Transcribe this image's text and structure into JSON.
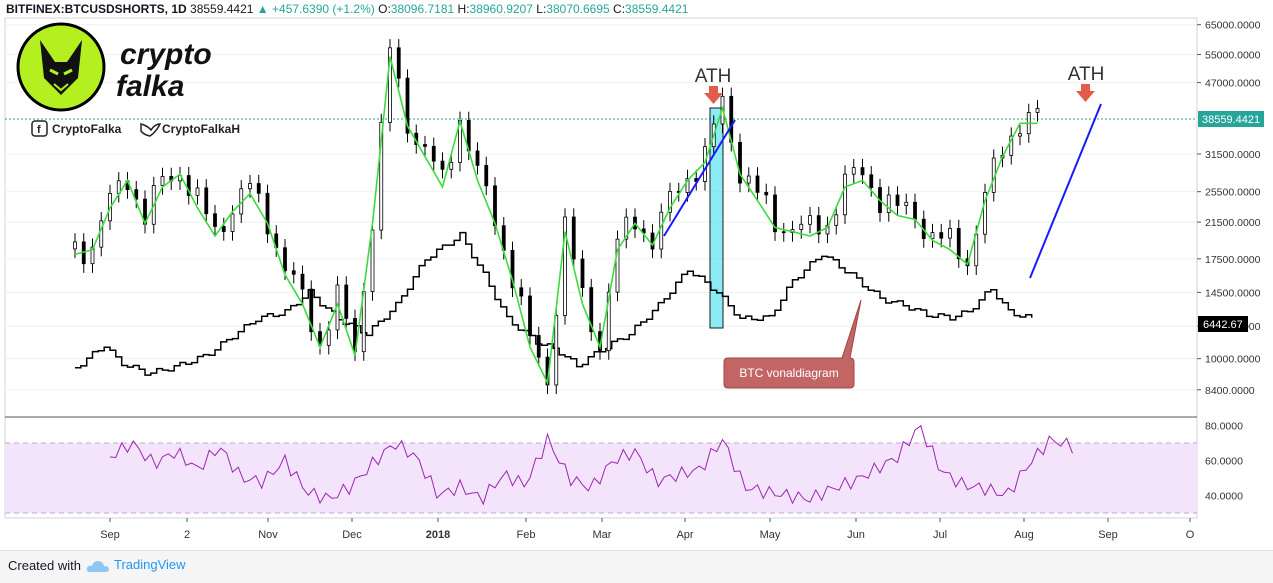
{
  "header": {
    "symbol": "BITFINEX:BTCUSDSHORTS, 1D",
    "last": "38559.4421",
    "change": "+457.6390 (+1.2%)",
    "o_label": "O:",
    "o": "38096.7181",
    "h_label": "H:",
    "h": "38960.9207",
    "l_label": "L:",
    "l": "38070.6695",
    "c_label": "C:",
    "c": "38559.4421"
  },
  "logo": {
    "line1": "crypto",
    "line2": "falka"
  },
  "social": {
    "facebook": "CryptoFalka",
    "twitter": "CryptoFalkaH"
  },
  "annotations": {
    "ath1": "ATH",
    "ath2": "ATH",
    "btc_callout": "BTC vonaldiagram"
  },
  "price_tags": {
    "shorts_last": "38559.4421",
    "btc_last": "6442.67"
  },
  "footer": {
    "created_with": "Created with",
    "brand": "TradingView"
  },
  "colors": {
    "candle": "#000000",
    "ma": "#3cdc3c",
    "trendline": "#1a1aff",
    "highlight": "#40e0f0",
    "rsi": "#9c27b0",
    "rsi_band": "#f3e3fb",
    "arrow": "#e25c4a",
    "callout": "#c26565"
  },
  "chart_data": [
    {
      "type": "line",
      "title": "",
      "series": [
        {
          "name": "",
          "x": [
            0,
            6,
            12,
            18,
            24,
            30,
            36,
            42,
            48,
            54,
            60,
            66,
            72,
            78,
            84,
            90,
            96,
            102,
            108,
            114,
            120,
            126,
            132,
            138,
            144,
            150,
            156,
            162,
            168,
            174,
            180,
            186,
            192,
            198,
            204,
            210,
            216,
            222,
            228,
            234,
            240,
            246,
            252,
            258,
            264,
            270,
            276,
            282,
            288,
            294,
            300,
            306,
            312,
            318,
            324,
            330,
            336,
            342,
            348
          ],
          "y": [
            18500,
            19000,
            24000,
            28000,
            22000,
            27000,
            29000,
            24000,
            20500,
            23500,
            26000,
            22000,
            16500,
            14000,
            11000,
            14000,
            10500,
            22000,
            56000,
            38000,
            32000,
            27000,
            39000,
            28000,
            22000,
            16000,
            11000,
            9000,
            21000,
            14000,
            11000,
            19000,
            22000,
            19500,
            24000,
            28000,
            31000,
            42000,
            29000,
            25000,
            21500,
            21000,
            20500,
            21500,
            27000,
            28000,
            25000,
            23000,
            22500,
            20000,
            19000,
            17500,
            25000,
            32000,
            38559,
            38559,
            38559,
            38559,
            38559
          ]
        }
      ],
      "ma_label": "",
      "ylim": [
        7500,
        66000
      ],
      "y_scale": "log",
      "y_ticks": [
        "65000.0000",
        "55000.0000",
        "47000.0000",
        "38559.4421",
        "31500.0000",
        "25500.0000",
        "21500.0000",
        "17500.0000",
        "14500.0000",
        "12000.0000",
        "10000.0000",
        "8400.0000"
      ],
      "x_ticks": [
        "Sep",
        "2",
        "Nov",
        "Dec",
        "2018",
        "Feb",
        "Mar",
        "Apr",
        "May",
        "Jun",
        "Jul",
        "Aug",
        "Sep",
        "O"
      ],
      "btc_line": {
        "name": "",
        "x": [
          0,
          10,
          15,
          25,
          35,
          45,
          55,
          62,
          72,
          80,
          90,
          100,
          110,
          120,
          132,
          140,
          148,
          158,
          165,
          172,
          180,
          190,
          200,
          210,
          220,
          228,
          238,
          246,
          256,
          266,
          276,
          284,
          292,
          300,
          306,
          314,
          320,
          328
        ],
        "y": [
          9500,
          10800,
          9800,
          9200,
          9600,
          10200,
          11500,
          12500,
          13000,
          14500,
          12500,
          11500,
          13500,
          17500,
          20000,
          16000,
          12500,
          11000,
          10500,
          9600,
          10500,
          11500,
          13500,
          16500,
          14500,
          12500,
          12600,
          15500,
          18000,
          16000,
          14000,
          13500,
          12800,
          12600,
          13000,
          14800,
          13000,
          12500
        ]
      }
    },
    {
      "type": "line",
      "title": "",
      "series": [
        {
          "name": "",
          "values": [
            62,
            70,
            58,
            65,
            55,
            68,
            50,
            48,
            60,
            42,
            38,
            45,
            58,
            70,
            62,
            40,
            45,
            38,
            52,
            46,
            72,
            50,
            44,
            60,
            65,
            48,
            52,
            55,
            72,
            45,
            42,
            40,
            38,
            44,
            48,
            55,
            62,
            80,
            54,
            46,
            44,
            40,
            58,
            72,
            68
          ]
        }
      ],
      "ylim": [
        28,
        82
      ],
      "y_ticks": [
        "80.0000",
        "60.0000",
        "40.0000"
      ],
      "band": [
        30,
        70
      ]
    }
  ]
}
